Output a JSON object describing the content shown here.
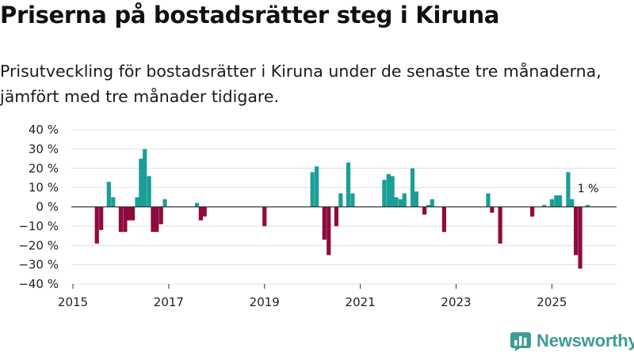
{
  "title": "Priserna på bostadsrätter steg i Kiruna",
  "subtitle": "Prisutveckling för bostadsrätter i Kiruna under de senaste tre månaderna, jämfört med tre månader tidigare.",
  "brand": "Newsworthy",
  "colors": {
    "positive": "#1a9e98",
    "negative": "#8f0a3d",
    "grid": "#dddddd",
    "zero": "#333333",
    "brand": "#3f9b97"
  },
  "chart_data": {
    "type": "bar",
    "xlim": [
      2015.0,
      2026.35
    ],
    "ylim": [
      -40,
      40
    ],
    "x_ticks": [
      2015,
      2017,
      2019,
      2021,
      2023,
      2025
    ],
    "x_tick_labels": [
      "2015",
      "2017",
      "2019",
      "2021",
      "2023",
      "2025"
    ],
    "y_ticks": [
      40,
      30,
      20,
      10,
      0,
      -10,
      -20,
      -30,
      -40
    ],
    "y_tick_labels": [
      "40 %",
      "30 %",
      "20 %",
      "10 %",
      "0 %",
      "−10 %",
      "−20 %",
      "−30 %",
      "−40 %"
    ],
    "series": [
      {
        "name": "Prisutveckling",
        "unit": "%"
      }
    ],
    "points": [
      {
        "x": 2015.5,
        "y": -19
      },
      {
        "x": 2015.59,
        "y": -12
      },
      {
        "x": 2015.75,
        "y": 13
      },
      {
        "x": 2015.84,
        "y": 5
      },
      {
        "x": 2016.0,
        "y": -13
      },
      {
        "x": 2016.09,
        "y": -13
      },
      {
        "x": 2016.17,
        "y": -7
      },
      {
        "x": 2016.25,
        "y": -7
      },
      {
        "x": 2016.34,
        "y": 5
      },
      {
        "x": 2016.42,
        "y": 25
      },
      {
        "x": 2016.5,
        "y": 30
      },
      {
        "x": 2016.59,
        "y": 16
      },
      {
        "x": 2016.67,
        "y": -13
      },
      {
        "x": 2016.75,
        "y": -13
      },
      {
        "x": 2016.84,
        "y": -9
      },
      {
        "x": 2016.92,
        "y": 4
      },
      {
        "x": 2017.59,
        "y": 2
      },
      {
        "x": 2017.67,
        "y": -7
      },
      {
        "x": 2017.75,
        "y": -5
      },
      {
        "x": 2019.0,
        "y": -10
      },
      {
        "x": 2020.0,
        "y": 18
      },
      {
        "x": 2020.09,
        "y": 21
      },
      {
        "x": 2020.25,
        "y": -17
      },
      {
        "x": 2020.34,
        "y": -25
      },
      {
        "x": 2020.5,
        "y": -10
      },
      {
        "x": 2020.59,
        "y": 7
      },
      {
        "x": 2020.75,
        "y": 23
      },
      {
        "x": 2020.84,
        "y": 7
      },
      {
        "x": 2021.5,
        "y": 14
      },
      {
        "x": 2021.59,
        "y": 17
      },
      {
        "x": 2021.67,
        "y": 16
      },
      {
        "x": 2021.75,
        "y": 5
      },
      {
        "x": 2021.84,
        "y": 4
      },
      {
        "x": 2021.92,
        "y": 7
      },
      {
        "x": 2022.09,
        "y": 20
      },
      {
        "x": 2022.17,
        "y": 8
      },
      {
        "x": 2022.34,
        "y": -4
      },
      {
        "x": 2022.42,
        "y": 1
      },
      {
        "x": 2022.5,
        "y": 4
      },
      {
        "x": 2022.75,
        "y": -13
      },
      {
        "x": 2023.67,
        "y": 7
      },
      {
        "x": 2023.75,
        "y": -3
      },
      {
        "x": 2023.92,
        "y": -19
      },
      {
        "x": 2024.59,
        "y": -5
      },
      {
        "x": 2024.84,
        "y": 1
      },
      {
        "x": 2025.0,
        "y": 4
      },
      {
        "x": 2025.09,
        "y": 6
      },
      {
        "x": 2025.17,
        "y": 6
      },
      {
        "x": 2025.34,
        "y": 18
      },
      {
        "x": 2025.42,
        "y": 4
      },
      {
        "x": 2025.5,
        "y": -25
      },
      {
        "x": 2025.59,
        "y": -32
      },
      {
        "x": 2025.75,
        "y": 1
      }
    ],
    "annotation": {
      "text": "1 %",
      "x": 2025.75,
      "y": 1
    }
  }
}
